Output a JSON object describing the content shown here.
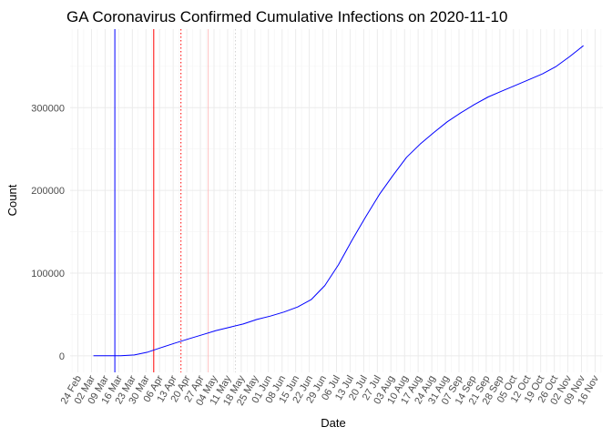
{
  "chart_data": {
    "type": "line",
    "title": "GA Coronavirus Confirmed Cumulative Infections on 2020-11-10",
    "xlabel": "Date",
    "ylabel": "Count",
    "x_ticks": [
      "24 Feb",
      "02 Mar",
      "09 Mar",
      "16 Mar",
      "23 Mar",
      "30 Mar",
      "06 Apr",
      "13 Apr",
      "20 Apr",
      "27 Apr",
      "04 May",
      "11 May",
      "18 May",
      "25 May",
      "01 Jun",
      "08 Jun",
      "15 Jun",
      "22 Jun",
      "29 Jun",
      "06 Jul",
      "13 Jul",
      "20 Jul",
      "27 Jul",
      "03 Aug",
      "10 Aug",
      "17 Aug",
      "24 Aug",
      "31 Aug",
      "07 Sep",
      "14 Sep",
      "21 Sep",
      "28 Sep",
      "05 Oct",
      "12 Oct",
      "19 Oct",
      "26 Oct",
      "02 Nov",
      "09 Nov",
      "16 Nov"
    ],
    "y_ticks": [
      0,
      100000,
      200000,
      300000
    ],
    "xlim": [
      "2020-02-20",
      "2020-11-20"
    ],
    "ylim": [
      -20000,
      395000
    ],
    "grid": true,
    "colors": {
      "line": "#0000ff",
      "panel": "#ffffff",
      "grid": "#ebebeb"
    },
    "vlines": [
      {
        "date": "2020-03-14",
        "color": "#0000ff",
        "style": "solid"
      },
      {
        "date": "2020-04-03",
        "color": "#ff0000",
        "style": "solid"
      },
      {
        "date": "2020-04-17",
        "color": "#ff0000",
        "style": "dotted"
      },
      {
        "date": "2020-05-01",
        "color": "#ffc0c0",
        "style": "solid"
      },
      {
        "date": "2020-05-15",
        "color": "#d3d3d3",
        "style": "dotted"
      }
    ],
    "series": [
      {
        "x": [
          "2020-03-03",
          "2020-03-10",
          "2020-03-17",
          "2020-03-24",
          "2020-03-31",
          "2020-04-07",
          "2020-04-14",
          "2020-04-21",
          "2020-04-28",
          "2020-05-05",
          "2020-05-12",
          "2020-05-19",
          "2020-05-26",
          "2020-06-02",
          "2020-06-09",
          "2020-06-16",
          "2020-06-23",
          "2020-06-30",
          "2020-07-07",
          "2020-07-14",
          "2020-07-21",
          "2020-07-28",
          "2020-08-04",
          "2020-08-11",
          "2020-08-18",
          "2020-08-25",
          "2020-09-01",
          "2020-09-08",
          "2020-09-15",
          "2020-09-22",
          "2020-09-29",
          "2020-10-06",
          "2020-10-13",
          "2020-10-20",
          "2020-10-27",
          "2020-11-03",
          "2020-11-10"
        ],
        "values": [
          2,
          17,
          146,
          1000,
          4600,
          10000,
          15500,
          20500,
          25500,
          30500,
          34500,
          38500,
          44000,
          48000,
          53000,
          59000,
          68000,
          85000,
          110000,
          140000,
          168000,
          195000,
          218000,
          240000,
          256000,
          270000,
          283000,
          294000,
          304000,
          313000,
          320000,
          327000,
          334000,
          341000,
          350000,
          362000,
          375000
        ]
      }
    ]
  }
}
